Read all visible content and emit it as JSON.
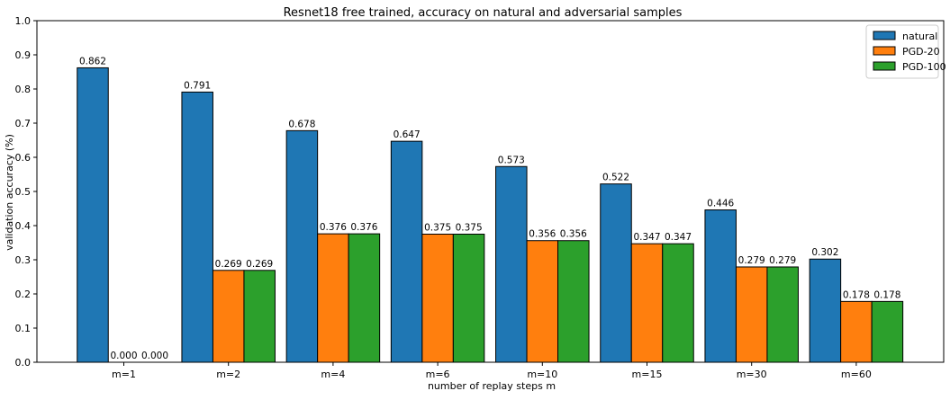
{
  "chart_data": {
    "type": "bar",
    "title": "Resnet18 free trained, accuracy on natural and adversarial samples",
    "xlabel": "number of replay steps m",
    "ylabel": "validation accuracy (%)",
    "categories": [
      "m=1",
      "m=2",
      "m=4",
      "m=6",
      "m=10",
      "m=15",
      "m=30",
      "m=60"
    ],
    "ylim": [
      0,
      1.0
    ],
    "yticks": [
      "0.0",
      "0.1",
      "0.2",
      "0.3",
      "0.4",
      "0.5",
      "0.6",
      "0.7",
      "0.8",
      "0.9",
      "1.0"
    ],
    "grid": false,
    "legend_position": "top-right",
    "series": [
      {
        "name": "natural",
        "color": "#1f77b4",
        "values": [
          0.862,
          0.791,
          0.678,
          0.647,
          0.573,
          0.522,
          0.446,
          0.302
        ],
        "labels": [
          "0.862",
          "0.791",
          "0.678",
          "0.647",
          "0.573",
          "0.522",
          "0.446",
          "0.302"
        ]
      },
      {
        "name": "PGD-20",
        "color": "#ff7f0e",
        "values": [
          0.0,
          0.269,
          0.376,
          0.375,
          0.356,
          0.347,
          0.279,
          0.178
        ],
        "labels": [
          "0.000",
          "0.269",
          "0.376",
          "0.375",
          "0.356",
          "0.347",
          "0.279",
          "0.178"
        ]
      },
      {
        "name": "PGD-100",
        "color": "#2ca02c",
        "values": [
          0.0,
          0.269,
          0.376,
          0.375,
          0.356,
          0.347,
          0.279,
          0.178
        ],
        "labels": [
          "0.000",
          "0.269",
          "0.376",
          "0.375",
          "0.356",
          "0.347",
          "0.279",
          "0.178"
        ]
      }
    ]
  }
}
